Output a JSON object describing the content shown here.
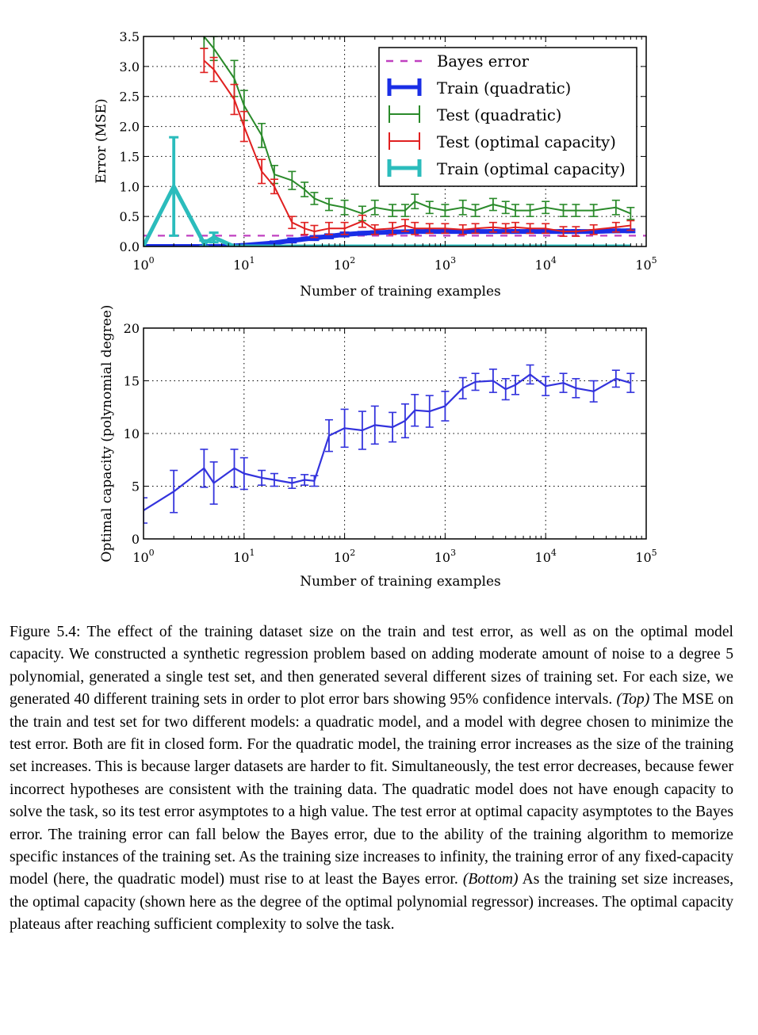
{
  "charts": {
    "top": {
      "ylabel": "Error (MSE)",
      "xlabel": "Number of training examples",
      "yticks": [
        "0.0",
        "0.5",
        "1.0",
        "1.5",
        "2.0",
        "2.5",
        "3.0",
        "3.5"
      ]
    },
    "bottom": {
      "ylabel": "Optimal capacity (polynomial degree)",
      "xlabel": "Number of training examples",
      "yticks": [
        "0",
        "5",
        "10",
        "15",
        "20"
      ]
    },
    "xtick_base": "10",
    "xtick_exps": [
      "0",
      "1",
      "2",
      "3",
      "4",
      "5"
    ]
  },
  "legend": {
    "bayes": "Bayes error",
    "train_quad": "Train (quadratic)",
    "test_quad": "Test (quadratic)",
    "test_opt": "Test (optimal capacity)",
    "train_opt": "Train (optimal capacity)"
  },
  "caption": {
    "line1_prefix": "Figure 5.4: The effect of the training dataset size on the train and test error, as well as on the optimal model capacity. We constructed a synthetic regression problem based on adding moderate amount of noise to a degree 5 polynomial, generated a single test set, and then generated several different sizes of training set. For each size, we generated 40 different training sets in order to plot error bars showing 95% confidence intervals.",
    "top_label": "(Top)",
    "middle": "The MSE on the train and test set for two different models: a quadratic model, and a model with degree chosen to minimize the test error. Both are fit in closed form. For the quadratic model, the training error increases as the size of the training set increases. This is because larger datasets are harder to fit. Simultaneously, the test error decreases, because fewer incorrect hypotheses are consistent with the training data. The quadratic model does not have enough capacity to solve the task, so its test error asymptotes to a high value. The test error at optimal capacity asymptotes to the Bayes error. The training error can fall below the Bayes error, due to the ability of the training algorithm to memorize specific instances of the training set. As the training size increases to infinity, the training error of any fixed-capacity model (here, the quadratic model) must rise to at least the Bayes error.",
    "bottom_label": "(Bottom)",
    "end": "As the training set size increases, the optimal capacity (shown here as the degree of the optimal polynomial regressor) increases. The optimal capacity plateaus after reaching sufficient complexity to solve the task."
  },
  "chart_data": [
    {
      "type": "line",
      "xscale": "log",
      "xlim": [
        1,
        100000
      ],
      "ylim": [
        0,
        3.5
      ],
      "xlabel": "Number of training examples",
      "ylabel": "Error (MSE)",
      "grid": true,
      "legend_position": "top-right",
      "bayes_error": 0.18,
      "series": [
        {
          "name": "Train (quadratic)",
          "color": "#1a2ee6",
          "x": [
            1,
            2,
            4,
            5,
            8,
            10,
            20,
            30,
            50,
            70,
            100,
            150,
            200,
            300,
            500,
            700,
            1000,
            1500,
            2000,
            3000,
            5000,
            7000,
            10000,
            15000,
            20000,
            30000,
            50000,
            70000
          ],
          "y": [
            0,
            0,
            0,
            0,
            0.01,
            0.02,
            0.06,
            0.1,
            0.14,
            0.17,
            0.2,
            0.22,
            0.23,
            0.24,
            0.25,
            0.25,
            0.25,
            0.25,
            0.25,
            0.25,
            0.25,
            0.25,
            0.25,
            0.25,
            0.25,
            0.25,
            0.26,
            0.26
          ],
          "err": [
            0,
            0,
            0,
            0,
            0,
            0,
            0.02,
            0.03,
            0.03,
            0.03,
            0.03,
            0.02,
            0.02,
            0.02,
            0.02,
            0.02,
            0.02,
            0.02,
            0.02,
            0.02,
            0.02,
            0.02,
            0.02,
            0.02,
            0.02,
            0.02,
            0.02,
            0.02
          ]
        },
        {
          "name": "Test (quadratic)",
          "color": "#2a8a2a",
          "x": [
            4,
            5,
            8,
            10,
            15,
            20,
            30,
            40,
            50,
            70,
            100,
            150,
            200,
            300,
            400,
            500,
            700,
            1000,
            1500,
            2000,
            3000,
            4000,
            5000,
            7000,
            10000,
            15000,
            20000,
            30000,
            50000,
            70000
          ],
          "y": [
            3.5,
            3.3,
            2.8,
            2.35,
            1.85,
            1.2,
            1.1,
            0.95,
            0.8,
            0.7,
            0.65,
            0.55,
            0.65,
            0.6,
            0.6,
            0.75,
            0.65,
            0.6,
            0.65,
            0.6,
            0.7,
            0.65,
            0.6,
            0.6,
            0.65,
            0.6,
            0.6,
            0.6,
            0.65,
            0.55
          ],
          "err": [
            0.2,
            0.2,
            0.3,
            0.25,
            0.2,
            0.15,
            0.15,
            0.12,
            0.1,
            0.1,
            0.12,
            0.12,
            0.12,
            0.1,
            0.1,
            0.12,
            0.1,
            0.1,
            0.12,
            0.1,
            0.1,
            0.1,
            0.1,
            0.1,
            0.1,
            0.1,
            0.1,
            0.1,
            0.12,
            0.1
          ]
        },
        {
          "name": "Test (optimal capacity)",
          "color": "#e02020",
          "x": [
            4,
            5,
            8,
            10,
            15,
            20,
            30,
            40,
            50,
            70,
            100,
            150,
            200,
            300,
            400,
            500,
            700,
            1000,
            1500,
            2000,
            3000,
            4000,
            5000,
            7000,
            10000,
            15000,
            20000,
            30000,
            50000,
            70000
          ],
          "y": [
            3.1,
            2.95,
            2.45,
            2.0,
            1.25,
            1.0,
            0.4,
            0.3,
            0.25,
            0.3,
            0.3,
            0.42,
            0.28,
            0.3,
            0.35,
            0.3,
            0.3,
            0.3,
            0.28,
            0.3,
            0.32,
            0.3,
            0.32,
            0.3,
            0.3,
            0.25,
            0.25,
            0.28,
            0.32,
            0.35
          ],
          "err": [
            0.2,
            0.2,
            0.25,
            0.25,
            0.2,
            0.12,
            0.1,
            0.1,
            0.1,
            0.1,
            0.1,
            0.1,
            0.08,
            0.1,
            0.1,
            0.1,
            0.08,
            0.08,
            0.08,
            0.08,
            0.08,
            0.08,
            0.08,
            0.08,
            0.08,
            0.08,
            0.08,
            0.08,
            0.08,
            0.08
          ]
        },
        {
          "name": "Train (optimal capacity)",
          "color": "#2bbcbc",
          "x": [
            1,
            2,
            4,
            5,
            8,
            10,
            20,
            30,
            50,
            70,
            100,
            200,
            500,
            1000,
            2000,
            5000,
            10000,
            20000,
            50000,
            70000
          ],
          "y": [
            0.01,
            1.0,
            0.05,
            0.15,
            0.0,
            0,
            0,
            0,
            0,
            0,
            0,
            0,
            0,
            0,
            0,
            0,
            0,
            0,
            0,
            0
          ],
          "err": [
            0,
            0.82,
            0.05,
            0.08,
            0,
            0,
            0,
            0,
            0,
            0,
            0,
            0,
            0,
            0,
            0,
            0,
            0,
            0,
            0,
            0
          ]
        }
      ]
    },
    {
      "type": "line",
      "xscale": "log",
      "xlim": [
        1,
        100000
      ],
      "ylim": [
        0,
        20
      ],
      "xlabel": "Number of training examples",
      "ylabel": "Optimal capacity (polynomial degree)",
      "grid": true,
      "series": [
        {
          "color": "#3333dd",
          "x": [
            1,
            2,
            4,
            5,
            8,
            10,
            15,
            20,
            30,
            40,
            50,
            70,
            100,
            150,
            200,
            300,
            400,
            500,
            700,
            1000,
            1500,
            2000,
            3000,
            4000,
            5000,
            7000,
            10000,
            15000,
            20000,
            30000,
            50000,
            70000
          ],
          "y": [
            2.7,
            4.5,
            6.7,
            5.3,
            6.7,
            6.2,
            5.8,
            5.6,
            5.3,
            5.6,
            5.5,
            9.8,
            10.5,
            10.3,
            10.8,
            10.6,
            11.2,
            12.2,
            12.1,
            12.6,
            14.3,
            14.9,
            15.0,
            14.2,
            14.6,
            15.6,
            14.5,
            14.8,
            14.3,
            14.0,
            15.2,
            14.8
          ],
          "err": [
            1.2,
            2.0,
            1.8,
            2.0,
            1.8,
            1.5,
            0.7,
            0.6,
            0.5,
            0.5,
            0.5,
            1.5,
            1.8,
            1.8,
            1.8,
            1.4,
            1.6,
            1.5,
            1.5,
            1.4,
            1.0,
            0.8,
            1.1,
            1.0,
            0.9,
            0.9,
            0.9,
            0.9,
            0.9,
            1.0,
            0.8,
            0.9
          ]
        }
      ]
    }
  ]
}
